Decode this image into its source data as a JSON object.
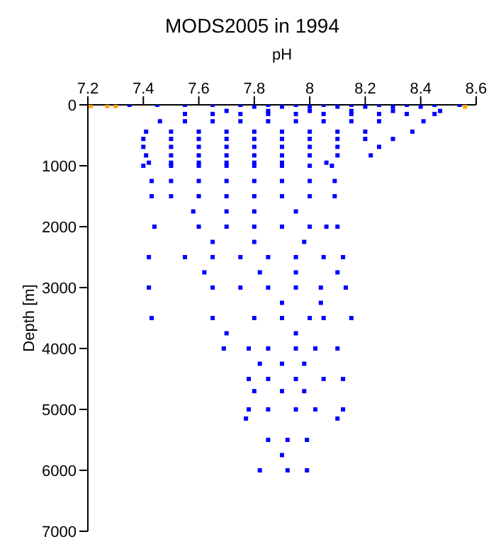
{
  "chart_data": {
    "type": "scatter",
    "title": "MODS2005 in 1994",
    "xlabel": "pH",
    "ylabel": "Depth [m]",
    "xlim": [
      7.2,
      8.6
    ],
    "xticks": [
      7.2,
      7.4,
      7.6,
      7.8,
      8,
      8.2,
      8.4,
      8.6
    ],
    "ylim": [
      7000,
      0
    ],
    "yticks": [
      0,
      1000,
      2000,
      3000,
      4000,
      5000,
      6000,
      7000
    ],
    "grid": false,
    "marker": "square",
    "series": [
      {
        "color": "#ffa500",
        "x": [
          7.21,
          7.27,
          7.3,
          8.56
        ],
        "values": [
          20,
          20,
          20,
          30
        ]
      },
      {
        "color": "#0000ff",
        "x": [
          7.35,
          7.45,
          7.55,
          7.65,
          7.75,
          7.85,
          7.95,
          8.05,
          8.15,
          8.25,
          8.35,
          8.45,
          8.54,
          7.8,
          7.9,
          8.0,
          8.1,
          8.2,
          8.3,
          8.4,
          7.7,
          7.85,
          8.0,
          8.15,
          8.3,
          8.47,
          7.55,
          7.65,
          7.75,
          7.85,
          7.95,
          8.05,
          8.15,
          8.25,
          8.35,
          8.45,
          7.46,
          7.55,
          7.65,
          7.75,
          7.85,
          7.95,
          8.05,
          8.15,
          8.25,
          8.41,
          7.41,
          7.5,
          7.6,
          7.7,
          7.8,
          7.9,
          8.0,
          8.1,
          8.2,
          8.37,
          7.4,
          7.5,
          7.6,
          7.7,
          7.8,
          7.9,
          8.0,
          8.1,
          8.2,
          8.3,
          7.4,
          7.5,
          7.6,
          7.7,
          7.8,
          7.9,
          8.0,
          8.1,
          8.25,
          7.41,
          7.5,
          7.6,
          7.7,
          7.8,
          7.9,
          8.0,
          8.1,
          8.22,
          7.42,
          7.5,
          7.6,
          7.7,
          7.8,
          7.9,
          8.06,
          7.4,
          7.5,
          7.6,
          7.7,
          7.8,
          7.9,
          8.0,
          8.08,
          7.43,
          7.5,
          7.6,
          7.7,
          7.8,
          7.9,
          8.0,
          8.09,
          7.43,
          7.5,
          7.6,
          7.7,
          7.8,
          7.9,
          8.0,
          8.09,
          7.58,
          7.7,
          7.8,
          7.95,
          7.44,
          7.6,
          7.7,
          7.8,
          7.9,
          8.0,
          8.06,
          8.1,
          7.65,
          7.8,
          7.98,
          7.42,
          7.55,
          7.65,
          7.75,
          7.85,
          7.95,
          8.05,
          8.12,
          7.62,
          7.82,
          7.95,
          8.1,
          7.42,
          7.65,
          7.75,
          7.85,
          7.95,
          8.04,
          8.13,
          7.9,
          8.04,
          7.43,
          7.65,
          7.8,
          7.9,
          8.0,
          8.05,
          8.15,
          7.7,
          7.95,
          7.69,
          7.78,
          7.85,
          7.95,
          8.02,
          8.1,
          7.82,
          7.9,
          7.98,
          7.78,
          7.85,
          7.95,
          8.05,
          8.12,
          7.8,
          7.9,
          7.98,
          7.78,
          7.85,
          7.95,
          8.02,
          8.12,
          7.77,
          8.1,
          7.85,
          7.92,
          7.99,
          7.9,
          7.82,
          7.92,
          7.99
        ],
        "values": [
          0,
          0,
          0,
          0,
          0,
          0,
          0,
          0,
          0,
          0,
          0,
          0,
          0,
          30,
          30,
          30,
          30,
          30,
          30,
          30,
          100,
          100,
          100,
          100,
          100,
          100,
          150,
          150,
          150,
          150,
          150,
          150,
          150,
          150,
          150,
          150,
          270,
          270,
          270,
          270,
          270,
          270,
          270,
          270,
          270,
          270,
          440,
          440,
          440,
          440,
          440,
          440,
          440,
          440,
          440,
          440,
          560,
          560,
          560,
          560,
          560,
          560,
          560,
          560,
          560,
          560,
          690,
          690,
          690,
          690,
          690,
          690,
          690,
          690,
          690,
          830,
          830,
          830,
          830,
          830,
          830,
          830,
          830,
          830,
          950,
          950,
          950,
          950,
          950,
          950,
          950,
          1000,
          1000,
          1000,
          1000,
          1000,
          1000,
          1000,
          1000,
          1250,
          1250,
          1250,
          1250,
          1250,
          1250,
          1250,
          1250,
          1500,
          1500,
          1500,
          1500,
          1500,
          1500,
          1500,
          1500,
          1750,
          1750,
          1750,
          1750,
          2000,
          2000,
          2000,
          2000,
          2000,
          2000,
          2000,
          2000,
          2250,
          2250,
          2250,
          2500,
          2500,
          2500,
          2500,
          2500,
          2500,
          2500,
          2500,
          2750,
          2750,
          2750,
          2750,
          3000,
          3000,
          3000,
          3000,
          3000,
          3000,
          3000,
          3250,
          3250,
          3500,
          3500,
          3500,
          3500,
          3500,
          3500,
          3500,
          3750,
          3750,
          4000,
          4000,
          4000,
          4000,
          4000,
          4000,
          4250,
          4250,
          4250,
          4500,
          4500,
          4500,
          4500,
          4500,
          4700,
          4700,
          4700,
          5000,
          5000,
          5000,
          5000,
          5000,
          5150,
          5150,
          5500,
          5500,
          5500,
          5750,
          6000,
          6000,
          6000
        ]
      }
    ]
  }
}
